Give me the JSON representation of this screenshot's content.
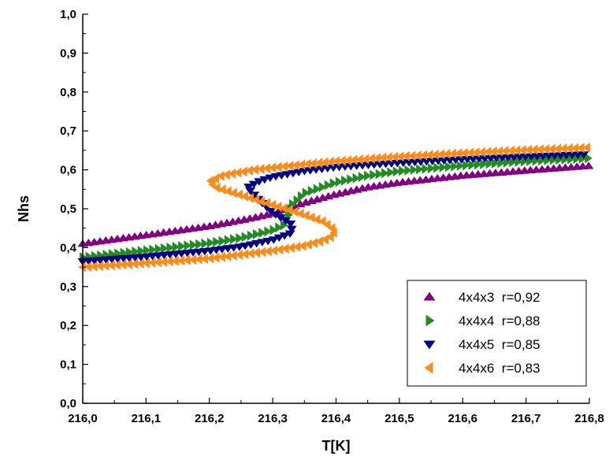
{
  "chart_data": {
    "type": "scatter",
    "title": "",
    "xlabel": "T[K]",
    "ylabel": "Nhs",
    "xlim": [
      216.0,
      216.8
    ],
    "ylim": [
      0.0,
      1.0
    ],
    "x_ticks": [
      "216,0",
      "216,1",
      "216,2",
      "216,3",
      "216,4",
      "216,5",
      "216,6",
      "216,7",
      "216,8"
    ],
    "y_ticks": [
      "0,0",
      "0,1",
      "0,2",
      "0,3",
      "0,4",
      "0,5",
      "0,6",
      "0,7",
      "0,8",
      "0,9",
      "1,0"
    ],
    "grid": false,
    "legend_position": "bottom-right",
    "series": [
      {
        "name": "4x4x3  r=0,92",
        "marker": "triangle-up",
        "color": "#800080",
        "curve": [
          [
            216.0,
            0.41
          ],
          [
            216.1,
            0.432
          ],
          [
            216.2,
            0.455
          ],
          [
            216.25,
            0.47
          ],
          [
            216.3,
            0.487
          ],
          [
            216.35,
            0.515
          ],
          [
            216.4,
            0.537
          ],
          [
            216.45,
            0.555
          ],
          [
            216.5,
            0.567
          ],
          [
            216.6,
            0.585
          ],
          [
            216.7,
            0.598
          ],
          [
            216.8,
            0.61
          ]
        ]
      },
      {
        "name": "4x4x4  r=0,88",
        "marker": "triangle-right",
        "color": "#228B22",
        "curve": [
          [
            216.0,
            0.375
          ],
          [
            216.1,
            0.393
          ],
          [
            216.2,
            0.412
          ],
          [
            216.25,
            0.425
          ],
          [
            216.3,
            0.445
          ],
          [
            216.32,
            0.46
          ],
          [
            216.33,
            0.51
          ],
          [
            216.35,
            0.54
          ],
          [
            216.4,
            0.568
          ],
          [
            216.45,
            0.585
          ],
          [
            216.5,
            0.597
          ],
          [
            216.6,
            0.611
          ],
          [
            216.7,
            0.622
          ],
          [
            216.8,
            0.63
          ]
        ]
      },
      {
        "name": "4x4x5  r=0,85",
        "marker": "triangle-down",
        "color": "#000080",
        "curve": [
          [
            216.0,
            0.365
          ],
          [
            216.1,
            0.377
          ],
          [
            216.2,
            0.392
          ],
          [
            216.25,
            0.403
          ],
          [
            216.3,
            0.42
          ],
          [
            216.33,
            0.438
          ],
          [
            216.33,
            0.46
          ],
          [
            216.32,
            0.47
          ],
          [
            216.3,
            0.49
          ],
          [
            216.28,
            0.52
          ],
          [
            216.26,
            0.555
          ],
          [
            216.28,
            0.572
          ],
          [
            216.3,
            0.582
          ],
          [
            216.35,
            0.597
          ],
          [
            216.4,
            0.607
          ],
          [
            216.5,
            0.618
          ],
          [
            216.6,
            0.627
          ],
          [
            216.7,
            0.634
          ],
          [
            216.8,
            0.64
          ]
        ]
      },
      {
        "name": "4x4x6  r=0,83",
        "marker": "triangle-left",
        "color": "#FF8C1A",
        "curve": [
          [
            216.0,
            0.35
          ],
          [
            216.1,
            0.36
          ],
          [
            216.2,
            0.372
          ],
          [
            216.3,
            0.392
          ],
          [
            216.35,
            0.405
          ],
          [
            216.38,
            0.418
          ],
          [
            216.395,
            0.43
          ],
          [
            216.398,
            0.445
          ],
          [
            216.38,
            0.467
          ],
          [
            216.34,
            0.49
          ],
          [
            216.3,
            0.51
          ],
          [
            216.25,
            0.535
          ],
          [
            216.21,
            0.555
          ],
          [
            216.2,
            0.57
          ],
          [
            216.22,
            0.585
          ],
          [
            216.27,
            0.6
          ],
          [
            216.35,
            0.614
          ],
          [
            216.4,
            0.622
          ],
          [
            216.5,
            0.634
          ],
          [
            216.6,
            0.643
          ],
          [
            216.7,
            0.651
          ],
          [
            216.8,
            0.657
          ]
        ]
      }
    ]
  }
}
